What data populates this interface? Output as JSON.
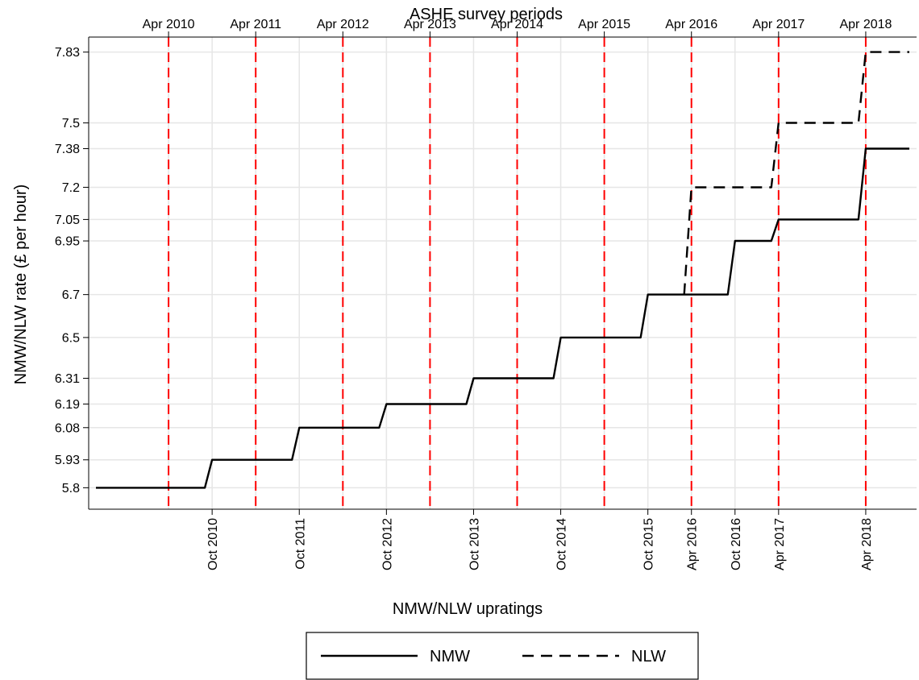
{
  "chart_data": {
    "type": "line",
    "top_axis_title": "ASHE survey periods",
    "xlabel": "NMW/NLW upratings",
    "ylabel": "NMW/NLW rate (£ per hour)",
    "x_range": [
      "2009-05-01",
      "2018-11-01"
    ],
    "ylim": [
      5.7,
      7.9
    ],
    "y_ticks": [
      5.8,
      5.93,
      6.08,
      6.19,
      6.31,
      6.5,
      6.7,
      6.95,
      7.05,
      7.2,
      7.38,
      7.5,
      7.83
    ],
    "y_tick_labels": [
      "5.8",
      "5.93",
      "6.08",
      "6.19",
      "6.31",
      "6.5",
      "6.7",
      "6.95",
      "7.05",
      "7.2",
      "7.38",
      "7.5",
      "7.83"
    ],
    "top_ticks": [
      {
        "date": "2010-04-01",
        "label": "Apr 2010"
      },
      {
        "date": "2011-04-01",
        "label": "Apr 2011"
      },
      {
        "date": "2012-04-01",
        "label": "Apr 2012"
      },
      {
        "date": "2013-04-01",
        "label": "Apr 2013"
      },
      {
        "date": "2014-04-01",
        "label": "Apr 2014"
      },
      {
        "date": "2015-04-01",
        "label": "Apr 2015"
      },
      {
        "date": "2016-04-01",
        "label": "Apr 2016"
      },
      {
        "date": "2017-04-01",
        "label": "Apr 2017"
      },
      {
        "date": "2018-04-01",
        "label": "Apr 2018"
      }
    ],
    "bottom_ticks": [
      {
        "date": "2010-10-01",
        "label": "Oct 2010"
      },
      {
        "date": "2011-10-01",
        "label": "Oct 2011"
      },
      {
        "date": "2012-10-01",
        "label": "Oct 2012"
      },
      {
        "date": "2013-10-01",
        "label": "Oct 2013"
      },
      {
        "date": "2014-10-01",
        "label": "Oct 2014"
      },
      {
        "date": "2015-10-01",
        "label": "Oct 2015"
      },
      {
        "date": "2016-04-01",
        "label": "Apr 2016"
      },
      {
        "date": "2016-10-01",
        "label": "Oct 2016"
      },
      {
        "date": "2017-04-01",
        "label": "Apr 2017"
      },
      {
        "date": "2018-04-01",
        "label": "Apr 2018"
      }
    ],
    "survey_lines": [
      "2010-04-01",
      "2011-04-01",
      "2012-04-01",
      "2013-04-01",
      "2014-04-01",
      "2015-04-01",
      "2016-04-01",
      "2017-04-01",
      "2018-04-01"
    ],
    "survey_line_color": "#ff0000",
    "grid": true,
    "legend_position": "bottom",
    "series": [
      {
        "name": "NMW",
        "style": "solid",
        "color": "#000000",
        "points": [
          {
            "x": "2009-06-01",
            "y": 5.8
          },
          {
            "x": "2010-09-01",
            "y": 5.8
          },
          {
            "x": "2010-10-01",
            "y": 5.93
          },
          {
            "x": "2011-09-01",
            "y": 5.93
          },
          {
            "x": "2011-10-01",
            "y": 6.08
          },
          {
            "x": "2012-09-01",
            "y": 6.08
          },
          {
            "x": "2012-10-01",
            "y": 6.19
          },
          {
            "x": "2013-09-01",
            "y": 6.19
          },
          {
            "x": "2013-10-01",
            "y": 6.31
          },
          {
            "x": "2014-09-01",
            "y": 6.31
          },
          {
            "x": "2014-10-01",
            "y": 6.5
          },
          {
            "x": "2015-09-01",
            "y": 6.5
          },
          {
            "x": "2015-10-01",
            "y": 6.7
          },
          {
            "x": "2016-09-01",
            "y": 6.7
          },
          {
            "x": "2016-10-01",
            "y": 6.95
          },
          {
            "x": "2017-03-01",
            "y": 6.95
          },
          {
            "x": "2017-04-01",
            "y": 7.05
          },
          {
            "x": "2018-03-01",
            "y": 7.05
          },
          {
            "x": "2018-04-01",
            "y": 7.38
          },
          {
            "x": "2018-10-01",
            "y": 7.38
          }
        ]
      },
      {
        "name": "NLW",
        "style": "dashed",
        "color": "#000000",
        "points": [
          {
            "x": "2016-03-01",
            "y": 6.7
          },
          {
            "x": "2016-04-01",
            "y": 7.2
          },
          {
            "x": "2017-03-01",
            "y": 7.2
          },
          {
            "x": "2017-04-01",
            "y": 7.5
          },
          {
            "x": "2018-03-01",
            "y": 7.5
          },
          {
            "x": "2018-04-01",
            "y": 7.83
          },
          {
            "x": "2018-10-01",
            "y": 7.83
          }
        ]
      }
    ]
  }
}
